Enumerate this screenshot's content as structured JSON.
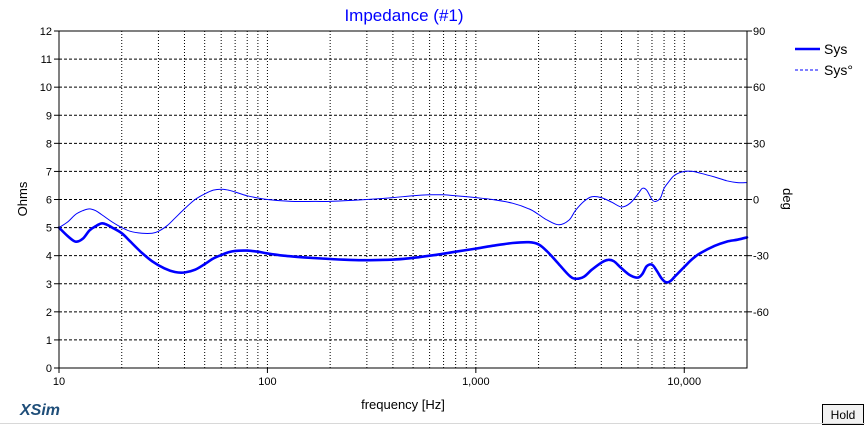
{
  "app": {
    "brand": "XSim",
    "hold_label": "Hold",
    "brand_color": "#1f4e79"
  },
  "chart_data": {
    "type": "line",
    "title": "Impedance (#1)",
    "xlabel": "frequency [Hz]",
    "ylabel": "Ohms",
    "y2label": "deg",
    "xscale": "log",
    "xlim": [
      10,
      20000
    ],
    "ylim": [
      0,
      12
    ],
    "y2lim": [
      -90,
      90
    ],
    "xticks": [
      10,
      100,
      1000,
      10000
    ],
    "xtick_labels": [
      "10",
      "100",
      "1,000",
      "10,000"
    ],
    "yticks": [
      0,
      1,
      2,
      3,
      4,
      5,
      6,
      7,
      8,
      9,
      10,
      11,
      12
    ],
    "y2ticks": [
      -60,
      -30,
      0,
      30,
      60,
      90
    ],
    "grid": true,
    "legend_position": "top-right",
    "colors": {
      "series": "#0000ff",
      "title": "#0000ff",
      "axis": "#000000",
      "grid": "#000000"
    },
    "series": [
      {
        "name": "Sys",
        "axis": "left",
        "style": "solid-thick",
        "x": [
          10,
          11,
          12,
          13,
          14,
          15,
          16,
          17,
          18,
          20,
          22,
          25,
          28,
          32,
          36,
          40,
          45,
          50,
          55,
          60,
          65,
          70,
          80,
          90,
          100,
          120,
          150,
          200,
          250,
          300,
          400,
          500,
          600,
          700,
          800,
          1000,
          1200,
          1500,
          1800,
          2000,
          2200,
          2500,
          2800,
          3000,
          3300,
          3600,
          4000,
          4300,
          4600,
          5000,
          5500,
          6000,
          6300,
          6600,
          7000,
          7400,
          7800,
          8200,
          8600,
          9000,
          10000,
          11000,
          12000,
          14000,
          16000,
          18000,
          20000
        ],
        "values": [
          5.0,
          4.7,
          4.5,
          4.6,
          4.9,
          5.05,
          5.15,
          5.1,
          5.0,
          4.8,
          4.5,
          4.1,
          3.8,
          3.55,
          3.42,
          3.4,
          3.5,
          3.7,
          3.9,
          4.02,
          4.12,
          4.17,
          4.18,
          4.14,
          4.08,
          4.0,
          3.94,
          3.88,
          3.85,
          3.84,
          3.86,
          3.92,
          4.0,
          4.07,
          4.14,
          4.25,
          4.35,
          4.45,
          4.48,
          4.4,
          4.15,
          3.7,
          3.3,
          3.18,
          3.25,
          3.5,
          3.75,
          3.85,
          3.8,
          3.55,
          3.3,
          3.22,
          3.35,
          3.62,
          3.68,
          3.45,
          3.18,
          3.05,
          3.1,
          3.25,
          3.6,
          3.9,
          4.1,
          4.35,
          4.5,
          4.57,
          4.65
        ]
      },
      {
        "name": "Sys°",
        "axis": "right",
        "style": "solid-thin",
        "x": [
          10,
          11,
          12,
          13,
          14,
          15,
          16,
          18,
          20,
          22,
          25,
          28,
          30,
          33,
          36,
          40,
          45,
          50,
          55,
          60,
          65,
          70,
          80,
          100,
          130,
          170,
          200,
          300,
          400,
          500,
          600,
          700,
          800,
          1000,
          1200,
          1500,
          1800,
          2000,
          2200,
          2500,
          2800,
          3000,
          3300,
          3600,
          4000,
          4500,
          5000,
          5500,
          6000,
          6300,
          6600,
          7000,
          7300,
          7700,
          8000,
          8500,
          9000,
          10000,
          11000,
          12000,
          14000,
          16000,
          18000,
          20000
        ],
        "values": [
          -15,
          -12,
          -8,
          -6,
          -5,
          -6,
          -8,
          -12,
          -15,
          -17,
          -18,
          -18,
          -17,
          -14,
          -10,
          -5,
          0,
          3,
          5,
          5.5,
          5,
          4,
          2,
          0,
          -1,
          -1,
          -1,
          0,
          1,
          2,
          2.5,
          2.5,
          2,
          1,
          0,
          -2,
          -5,
          -8,
          -11,
          -13.5,
          -11,
          -6,
          -1,
          1.5,
          1,
          -1.5,
          -4,
          -2,
          3,
          6,
          5,
          0,
          -1,
          1,
          6,
          10,
          13,
          15,
          15,
          14,
          12,
          10,
          9,
          9
        ]
      }
    ]
  }
}
